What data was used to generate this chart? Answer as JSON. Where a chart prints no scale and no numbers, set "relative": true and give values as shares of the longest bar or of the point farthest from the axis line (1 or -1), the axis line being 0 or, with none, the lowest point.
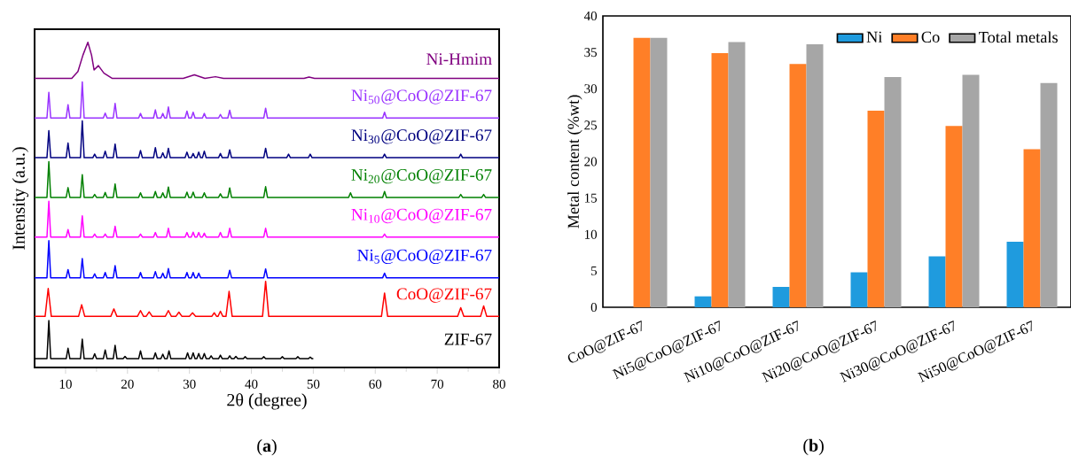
{
  "chart_data": [
    {
      "type": "line",
      "relative": true,
      "xlabel": "2θ (degree)",
      "ylabel": "Intensity (a.u.)",
      "xlim": [
        5,
        80
      ],
      "xticks": [
        10,
        20,
        30,
        40,
        50,
        60,
        70,
        80
      ],
      "series": [
        {
          "name": "Ni-Hmim",
          "color": "#800080",
          "x": [
            5,
            11,
            12,
            12.8,
            13.6,
            14.2,
            14.6,
            15.3,
            16.2,
            17.5,
            29,
            30.8,
            32.5,
            34.2,
            35.5,
            48.5,
            49.3,
            50.2,
            80
          ],
          "values": [
            0.889,
            0.889,
            0.91,
            0.96,
            1.0,
            0.96,
            0.915,
            0.928,
            0.905,
            0.889,
            0.889,
            0.9,
            0.889,
            0.894,
            0.889,
            0.889,
            0.893,
            0.889,
            0.889
          ]
        },
        {
          "name": "Ni$_{50}$@CoO@ZIF-67",
          "color": "#9933ff",
          "x": [
            5,
            7.0,
            7.3,
            7.6,
            10.1,
            10.4,
            10.7,
            12.4,
            12.7,
            13.0,
            16.1,
            16.4,
            16.7,
            17.7,
            18.0,
            18.3,
            21.8,
            22.1,
            22.4,
            24.2,
            24.5,
            24.8,
            25.4,
            25.7,
            26.0,
            26.3,
            26.6,
            26.9,
            29.3,
            29.6,
            29.9,
            30.3,
            30.6,
            30.9,
            32.1,
            32.4,
            32.7,
            34.7,
            35.0,
            35.3,
            36.2,
            36.5,
            36.8,
            42.0,
            42.3,
            42.6,
            61.2,
            61.5,
            61.8,
            80
          ],
          "values": [
            0.767,
            0.767,
            0.846,
            0.767,
            0.767,
            0.808,
            0.767,
            0.767,
            0.878,
            0.767,
            0.767,
            0.782,
            0.767,
            0.767,
            0.812,
            0.767,
            0.767,
            0.781,
            0.767,
            0.767,
            0.792,
            0.767,
            0.767,
            0.781,
            0.767,
            0.767,
            0.801,
            0.767,
            0.767,
            0.788,
            0.767,
            0.767,
            0.785,
            0.767,
            0.767,
            0.781,
            0.767,
            0.767,
            0.778,
            0.767,
            0.767,
            0.791,
            0.767,
            0.767,
            0.797,
            0.767,
            0.767,
            0.785,
            0.767,
            0.767
          ]
        },
        {
          "name": "Ni$_{30}$@CoO@ZIF-67",
          "color": "#000080",
          "x": [
            5,
            7.0,
            7.3,
            7.6,
            10.1,
            10.4,
            10.7,
            12.4,
            12.7,
            13.0,
            14.4,
            14.7,
            15.0,
            16.1,
            16.4,
            16.7,
            17.7,
            18.0,
            18.3,
            21.8,
            22.1,
            22.4,
            24.2,
            24.5,
            24.8,
            25.4,
            25.7,
            26.0,
            26.3,
            26.6,
            26.9,
            29.3,
            29.6,
            29.9,
            30.3,
            30.6,
            30.9,
            31.2,
            31.5,
            31.8,
            32.1,
            32.4,
            32.7,
            34.7,
            35.0,
            35.3,
            36.2,
            36.5,
            36.8,
            42.0,
            42.3,
            42.6,
            45.7,
            46.0,
            46.3,
            49.2,
            49.5,
            49.8,
            61.2,
            61.5,
            61.8,
            73.5,
            73.8,
            74.1,
            80
          ],
          "values": [
            0.645,
            0.645,
            0.728,
            0.645,
            0.645,
            0.69,
            0.645,
            0.645,
            0.758,
            0.645,
            0.645,
            0.656,
            0.645,
            0.645,
            0.665,
            0.645,
            0.645,
            0.687,
            0.645,
            0.645,
            0.667,
            0.645,
            0.645,
            0.676,
            0.645,
            0.645,
            0.66,
            0.645,
            0.645,
            0.674,
            0.645,
            0.645,
            0.662,
            0.645,
            0.645,
            0.658,
            0.645,
            0.645,
            0.662,
            0.645,
            0.645,
            0.665,
            0.645,
            0.645,
            0.658,
            0.645,
            0.645,
            0.669,
            0.645,
            0.645,
            0.674,
            0.645,
            0.645,
            0.656,
            0.645,
            0.645,
            0.656,
            0.645,
            0.645,
            0.656,
            0.645,
            0.645,
            0.656,
            0.645,
            0.645
          ]
        },
        {
          "name": "Ni$_{20}$@CoO@ZIF-67",
          "color": "#008000",
          "x": [
            5,
            7.0,
            7.3,
            7.6,
            10.1,
            10.4,
            10.7,
            12.4,
            12.7,
            13.0,
            14.4,
            14.7,
            15.0,
            16.1,
            16.4,
            16.7,
            17.7,
            18.0,
            18.3,
            21.8,
            22.1,
            22.4,
            24.2,
            24.5,
            24.8,
            25.4,
            25.7,
            26.0,
            26.3,
            26.6,
            26.9,
            29.3,
            29.6,
            29.9,
            30.3,
            30.6,
            30.9,
            32.1,
            32.4,
            32.7,
            34.7,
            35.0,
            35.3,
            36.2,
            36.5,
            36.8,
            42.0,
            42.3,
            42.6,
            55.7,
            56.0,
            56.3,
            61.2,
            61.5,
            61.8,
            73.5,
            73.8,
            74.1,
            77.2,
            77.5,
            77.8,
            80
          ],
          "values": [
            0.523,
            0.523,
            0.633,
            0.523,
            0.523,
            0.553,
            0.523,
            0.523,
            0.593,
            0.523,
            0.523,
            0.532,
            0.523,
            0.523,
            0.538,
            0.523,
            0.523,
            0.564,
            0.523,
            0.523,
            0.537,
            0.523,
            0.523,
            0.541,
            0.523,
            0.523,
            0.537,
            0.523,
            0.523,
            0.555,
            0.523,
            0.523,
            0.539,
            0.523,
            0.523,
            0.539,
            0.523,
            0.523,
            0.537,
            0.523,
            0.523,
            0.534,
            0.523,
            0.523,
            0.552,
            0.523,
            0.523,
            0.556,
            0.523,
            0.523,
            0.537,
            0.523,
            0.523,
            0.541,
            0.523,
            0.523,
            0.532,
            0.523,
            0.523,
            0.532,
            0.523,
            0.523
          ]
        },
        {
          "name": "Ni$_{10}$@CoO@ZIF-67",
          "color": "#ff00ff",
          "x": [
            5,
            7.0,
            7.3,
            7.6,
            10.1,
            10.4,
            10.7,
            12.4,
            12.7,
            13.0,
            14.4,
            14.7,
            15.0,
            16.1,
            16.4,
            16.7,
            17.7,
            18.0,
            18.3,
            21.8,
            22.1,
            22.4,
            24.2,
            24.5,
            24.8,
            26.3,
            26.6,
            26.9,
            29.3,
            29.6,
            29.9,
            30.3,
            30.6,
            30.9,
            31.2,
            31.5,
            31.8,
            32.1,
            32.4,
            32.7,
            34.7,
            35.0,
            35.3,
            36.2,
            36.5,
            36.8,
            42.0,
            42.3,
            42.6,
            61.2,
            61.5,
            61.8,
            80
          ],
          "values": [
            0.401,
            0.401,
            0.511,
            0.401,
            0.401,
            0.424,
            0.401,
            0.401,
            0.466,
            0.401,
            0.401,
            0.41,
            0.401,
            0.401,
            0.41,
            0.401,
            0.401,
            0.434,
            0.401,
            0.401,
            0.41,
            0.401,
            0.401,
            0.415,
            0.401,
            0.401,
            0.428,
            0.401,
            0.401,
            0.415,
            0.401,
            0.401,
            0.416,
            0.401,
            0.401,
            0.415,
            0.401,
            0.401,
            0.413,
            0.401,
            0.401,
            0.415,
            0.401,
            0.401,
            0.428,
            0.401,
            0.401,
            0.428,
            0.401,
            0.401,
            0.41,
            0.401,
            0.401
          ]
        },
        {
          "name": "Ni$_{5}$@CoO@ZIF-67",
          "color": "#0000ff",
          "x": [
            5,
            7.0,
            7.3,
            7.6,
            10.1,
            10.4,
            10.7,
            12.4,
            12.7,
            13.0,
            14.4,
            14.7,
            15.0,
            16.1,
            16.4,
            16.7,
            17.7,
            18.0,
            18.3,
            21.8,
            22.1,
            22.4,
            24.2,
            24.5,
            24.8,
            25.4,
            25.7,
            26.0,
            26.3,
            26.6,
            26.9,
            29.3,
            29.6,
            29.9,
            30.3,
            30.6,
            30.9,
            31.2,
            31.5,
            31.8,
            36.2,
            36.5,
            36.8,
            42.0,
            42.3,
            42.6,
            61.2,
            61.5,
            61.8,
            80
          ],
          "values": [
            0.276,
            0.276,
            0.39,
            0.276,
            0.276,
            0.301,
            0.276,
            0.276,
            0.335,
            0.276,
            0.276,
            0.288,
            0.276,
            0.276,
            0.292,
            0.276,
            0.276,
            0.313,
            0.276,
            0.276,
            0.292,
            0.276,
            0.276,
            0.295,
            0.276,
            0.276,
            0.29,
            0.276,
            0.276,
            0.304,
            0.276,
            0.276,
            0.292,
            0.276,
            0.276,
            0.292,
            0.276,
            0.276,
            0.29,
            0.276,
            0.276,
            0.299,
            0.276,
            0.276,
            0.303,
            0.276,
            0.276,
            0.29,
            0.276,
            0.276
          ]
        },
        {
          "name": "CoO@ZIF-67",
          "color": "#ff0000",
          "x": [
            5,
            6.7,
            7.2,
            7.7,
            12.1,
            12.6,
            13.1,
            17.3,
            17.8,
            18.3,
            21.6,
            22.1,
            22.6,
            23.0,
            23.5,
            24.0,
            26.1,
            26.6,
            27.1,
            27.8,
            28.3,
            28.8,
            30.0,
            30.5,
            31.0,
            33.6,
            34.0,
            34.4,
            34.6,
            35.0,
            35.4,
            35.9,
            36.4,
            36.9,
            41.8,
            42.3,
            42.8,
            61.0,
            61.5,
            62.0,
            73.3,
            73.8,
            74.3,
            77.0,
            77.5,
            78.0,
            80
          ],
          "values": [
            0.157,
            0.157,
            0.243,
            0.157,
            0.157,
            0.193,
            0.157,
            0.157,
            0.18,
            0.157,
            0.157,
            0.175,
            0.157,
            0.157,
            0.171,
            0.157,
            0.157,
            0.175,
            0.157,
            0.157,
            0.17,
            0.157,
            0.157,
            0.168,
            0.157,
            0.157,
            0.168,
            0.157,
            0.157,
            0.173,
            0.157,
            0.157,
            0.234,
            0.157,
            0.157,
            0.265,
            0.157,
            0.157,
            0.229,
            0.157,
            0.157,
            0.184,
            0.157,
            0.157,
            0.189,
            0.157,
            0.157
          ]
        },
        {
          "name": "ZIF-67",
          "color": "#000000",
          "x": [
            5,
            7.0,
            7.3,
            7.6,
            10.1,
            10.4,
            10.7,
            12.4,
            12.7,
            13.0,
            14.4,
            14.7,
            15.0,
            16.1,
            16.4,
            16.7,
            17.7,
            18.0,
            18.3,
            19.3,
            19.6,
            19.9,
            21.8,
            22.1,
            22.4,
            24.2,
            24.5,
            24.8,
            25.4,
            25.7,
            26.0,
            26.4,
            26.7,
            27.0,
            29.4,
            29.7,
            30.0,
            30.3,
            30.6,
            30.9,
            31.2,
            31.5,
            31.8,
            32.1,
            32.4,
            32.7,
            33.2,
            33.5,
            33.8,
            34.7,
            35.0,
            35.3,
            36.2,
            36.5,
            36.8,
            37.2,
            37.5,
            37.8,
            38.7,
            39.0,
            39.3,
            41.7,
            42.0,
            42.3,
            44.7,
            45.0,
            45.3,
            47.2,
            47.5,
            47.8,
            49.2,
            49.5,
            49.8,
            50
          ],
          "values": [
            0.027,
            0.027,
            0.144,
            0.027,
            0.027,
            0.059,
            0.027,
            0.027,
            0.087,
            0.027,
            0.027,
            0.042,
            0.027,
            0.027,
            0.054,
            0.027,
            0.027,
            0.068,
            0.027,
            0.027,
            0.034,
            0.027,
            0.027,
            0.051,
            0.027,
            0.027,
            0.045,
            0.027,
            0.027,
            0.041,
            0.027,
            0.027,
            0.051,
            0.027,
            0.027,
            0.045,
            0.027,
            0.027,
            0.045,
            0.027,
            0.027,
            0.043,
            0.027,
            0.027,
            0.043,
            0.027,
            0.027,
            0.036,
            0.027,
            0.027,
            0.038,
            0.027,
            0.027,
            0.036,
            0.027,
            0.027,
            0.034,
            0.027,
            0.027,
            0.033,
            0.027,
            0.027,
            0.033,
            0.027,
            0.027,
            0.033,
            0.027,
            0.027,
            0.033,
            0.027,
            0.027,
            0.032,
            0.027,
            0.027
          ]
        }
      ],
      "annotations": [
        "(**a**)"
      ]
    },
    {
      "type": "bar",
      "ylabel": "Metal content (%wt)",
      "categories": [
        "CoO@ZIF-67",
        "Ni5@CoO@ZIF-67",
        "Ni10@CoO@ZIF-67",
        "Ni20@CoO@ZIF-67",
        "Ni30@CoO@ZIF-67",
        "Ni50@CoO@ZIF-67"
      ],
      "ylim": [
        0,
        40
      ],
      "yticks": [
        0,
        5,
        10,
        15,
        20,
        25,
        30,
        35,
        40
      ],
      "legend": "top right",
      "series": [
        {
          "name": "Ni",
          "color": "#1f9bde",
          "values": [
            0,
            1.5,
            2.8,
            4.8,
            7.0,
            9.0
          ]
        },
        {
          "name": "Co",
          "color": "#ff7f27",
          "values": [
            37.0,
            34.9,
            33.4,
            27.0,
            24.9,
            21.7
          ]
        },
        {
          "name": "Total metals",
          "color": "#a6a6a6",
          "values": [
            37.0,
            36.4,
            36.1,
            31.6,
            31.9,
            30.8
          ]
        }
      ],
      "annotations": [
        "(**b**)"
      ]
    }
  ]
}
